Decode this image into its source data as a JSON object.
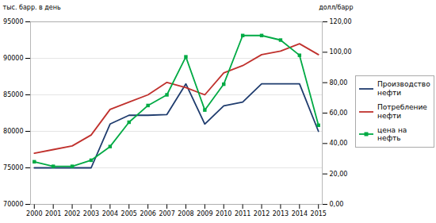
{
  "chart_data": {
    "type": "line",
    "x": [
      2000,
      2001,
      2002,
      2003,
      2004,
      2005,
      2006,
      2007,
      2008,
      2009,
      2010,
      2011,
      2012,
      2013,
      2014,
      2015
    ],
    "xlim": [
      1999.8,
      2015.2
    ],
    "xticks": [
      2000,
      2001,
      2002,
      2003,
      2004,
      2005,
      2006,
      2007,
      2008,
      2009,
      2010,
      2011,
      2012,
      2013,
      2014,
      2015
    ],
    "series": [
      {
        "name": "Производство\nнефти",
        "color": "#1f3c6e",
        "values": [
          75000,
          75000,
          75000,
          75000,
          81000,
          82200,
          82200,
          82300,
          86500,
          81000,
          83500,
          84000,
          86500,
          86500,
          86500,
          80000
        ]
      },
      {
        "name": "Потребление\nнефти",
        "color": "#c0312d",
        "values": [
          77000,
          77500,
          78000,
          79500,
          83000,
          84000,
          85000,
          86700,
          86000,
          85000,
          88000,
          89000,
          90500,
          91000,
          92000,
          90500
        ]
      },
      {
        "name": "цена на нефть",
        "color": "#00aa44",
        "axis": "y2",
        "marker": "square",
        "values": [
          28,
          25,
          25,
          29,
          38,
          54,
          65,
          72,
          97,
          62,
          79,
          111,
          111,
          108,
          98,
          52
        ]
      }
    ],
    "y_label": "тыс. барр. в день",
    "y2_label": "долл/барр",
    "ylim": [
      70000,
      95000
    ],
    "yticks": [
      70000,
      75000,
      80000,
      85000,
      90000,
      95000
    ],
    "y2lim": [
      0,
      120
    ],
    "y2ticks": [
      {
        "value": 0,
        "label": "0,00"
      },
      {
        "value": 20,
        "label": "20,00"
      },
      {
        "value": 40,
        "label": "40,00"
      },
      {
        "value": 60,
        "label": "60,00"
      },
      {
        "value": 80,
        "label": "80,00"
      },
      {
        "value": 100,
        "label": "100,00"
      },
      {
        "value": 120,
        "label": "120,00"
      }
    ],
    "grid": true,
    "legend": "right"
  }
}
